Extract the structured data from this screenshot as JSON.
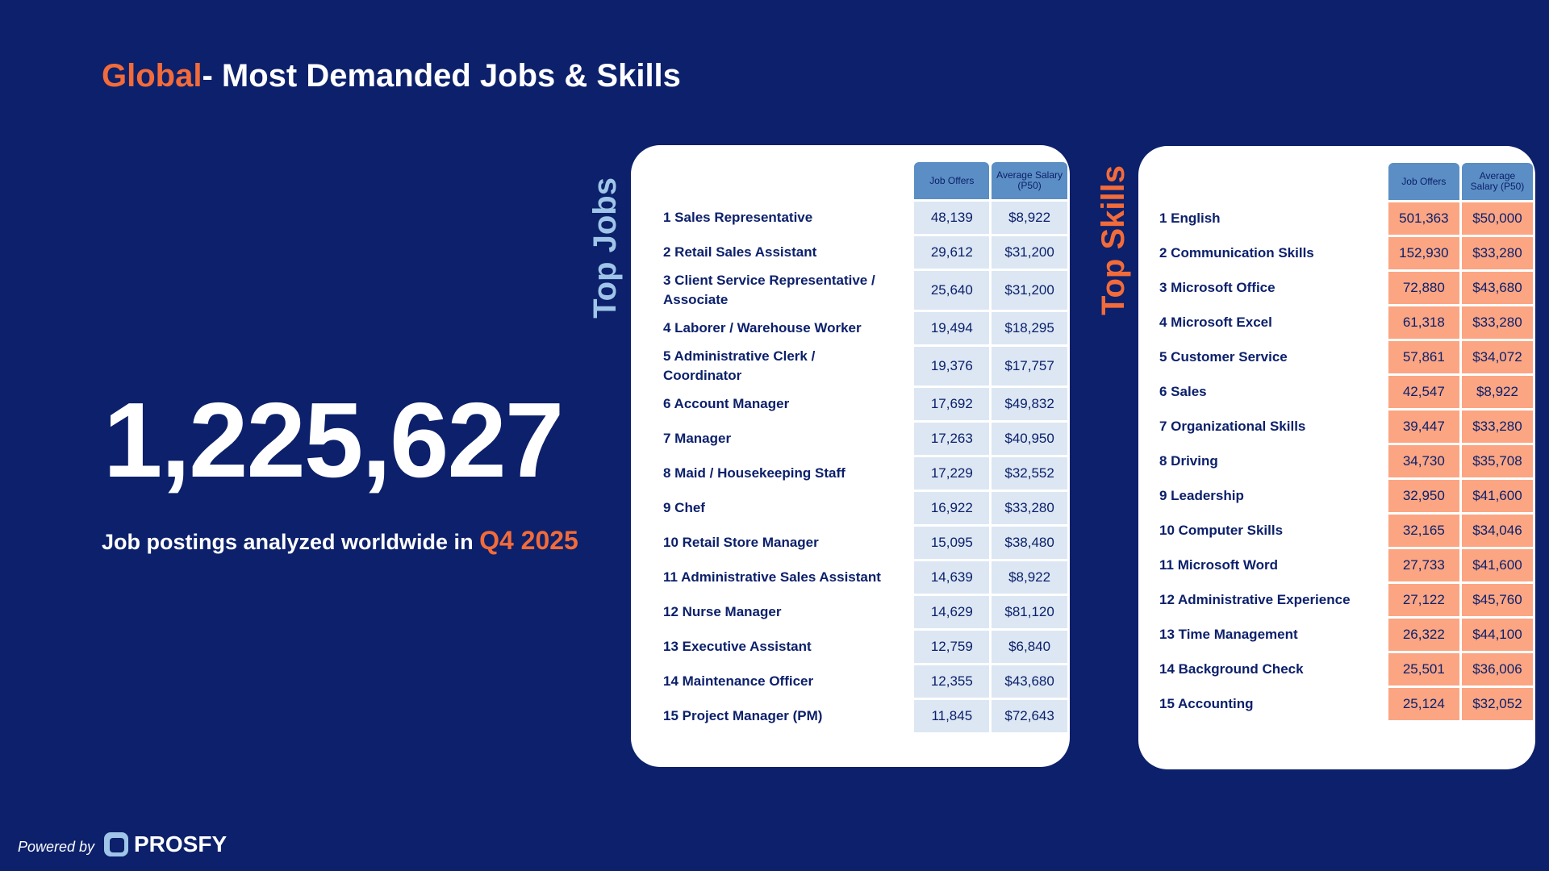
{
  "header": {
    "title_highlight": "Global",
    "title_rest": "- Most Demanded Jobs & Skills"
  },
  "stat": {
    "number": "1,225,627",
    "caption": "Job postings analyzed worldwide in",
    "caption_highlight": "Q4 2025"
  },
  "jobs": {
    "heading": "Top Jobs",
    "columns": [
      "Job Offers",
      "Average Salary (P50)"
    ],
    "rows": [
      [
        "1 Sales Representative",
        "48,139",
        "$8,922"
      ],
      [
        "2 Retail Sales Assistant",
        "29,612",
        "$31,200"
      ],
      [
        "3 Client Service Representative / Associate",
        "25,640",
        "$31,200"
      ],
      [
        "4 Laborer / Warehouse Worker",
        "19,494",
        "$18,295"
      ],
      [
        "5 Administrative Clerk / Coordinator",
        "19,376",
        "$17,757"
      ],
      [
        "6 Account Manager",
        "17,692",
        "$49,832"
      ],
      [
        "7 Manager",
        "17,263",
        "$40,950"
      ],
      [
        "8 Maid / Housekeeping Staff",
        "17,229",
        "$32,552"
      ],
      [
        "9 Chef",
        "16,922",
        "$33,280"
      ],
      [
        "10 Retail Store Manager",
        "15,095",
        "$38,480"
      ],
      [
        "11 Administrative Sales Assistant",
        "14,639",
        "$8,922"
      ],
      [
        "12 Nurse Manager",
        "14,629",
        "$81,120"
      ],
      [
        "13 Executive Assistant",
        "12,759",
        "$6,840"
      ],
      [
        "14 Maintenance Officer",
        "12,355",
        "$43,680"
      ],
      [
        "15 Project Manager (PM)",
        "11,845",
        "$72,643"
      ]
    ]
  },
  "skills": {
    "heading": "Top Skills",
    "columns": [
      "Job Offers",
      "Average Salary (P50)"
    ],
    "rows": [
      [
        "1 English",
        "501,363",
        "$50,000"
      ],
      [
        "2 Communication Skills",
        "152,930",
        "$33,280"
      ],
      [
        "3 Microsoft Office",
        "72,880",
        "$43,680"
      ],
      [
        "4 Microsoft Excel",
        "61,318",
        "$33,280"
      ],
      [
        "5 Customer Service",
        "57,861",
        "$34,072"
      ],
      [
        "6 Sales",
        "42,547",
        "$8,922"
      ],
      [
        "7 Organizational Skills",
        "39,447",
        "$33,280"
      ],
      [
        "8 Driving",
        "34,730",
        "$35,708"
      ],
      [
        "9 Leadership",
        "32,950",
        "$41,600"
      ],
      [
        "10 Computer Skills",
        "32,165",
        "$34,046"
      ],
      [
        "11 Microsoft Word",
        "27,733",
        "$41,600"
      ],
      [
        "12 Administrative Experience",
        "27,122",
        "$45,760"
      ],
      [
        "13 Time Management",
        "26,322",
        "$44,100"
      ],
      [
        "14 Background Check",
        "25,501",
        "$36,006"
      ],
      [
        "15 Accounting",
        "25,124",
        "$32,052"
      ]
    ]
  },
  "footer": {
    "powered": "Powered by",
    "brand": "PROSFY"
  }
}
